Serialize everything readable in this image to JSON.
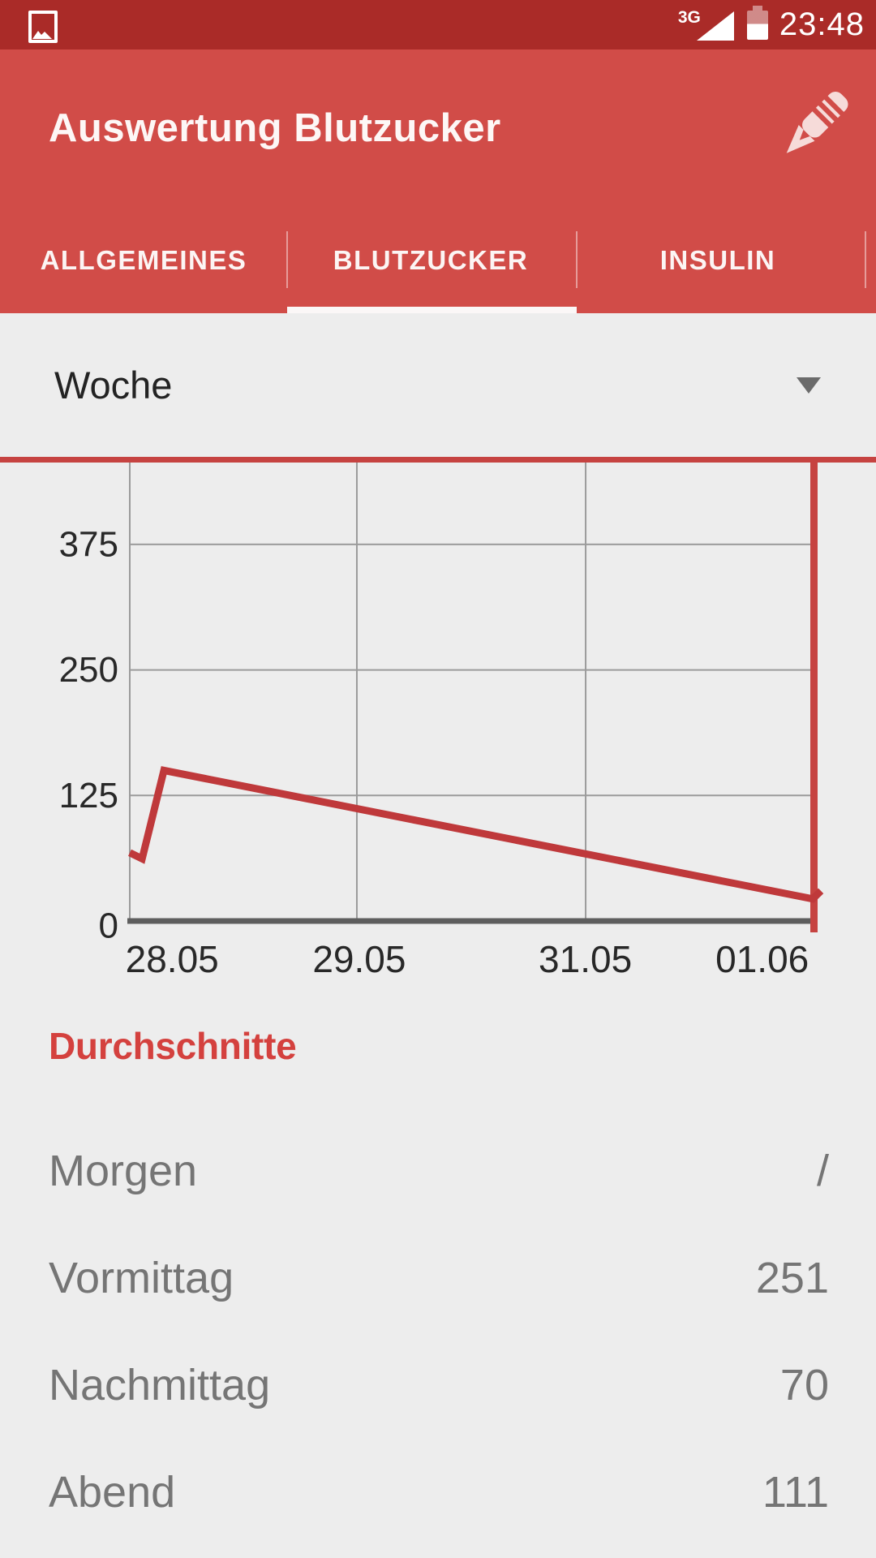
{
  "status_bar": {
    "network_label": "3G",
    "time": "23:48",
    "icons": [
      "gallery-icon",
      "signal-triangle-icon",
      "battery-icon"
    ]
  },
  "app_bar": {
    "title": "Auswertung Blutzucker",
    "edit_icon": "pencil-icon"
  },
  "tabs": {
    "items": [
      {
        "label": "ALLGEMEINES",
        "active": false
      },
      {
        "label": "BLUTZUCKER",
        "active": true
      },
      {
        "label": "INSULIN",
        "active": false
      }
    ]
  },
  "filter": {
    "selected": "Woche",
    "chevron_icon": "chevron-down-icon"
  },
  "chart_data": {
    "type": "line",
    "title": "",
    "xlabel": "",
    "ylabel": "",
    "x_ticks": [
      {
        "label": "28.05",
        "pos": 0.062
      },
      {
        "label": "29.05",
        "pos": 0.336
      },
      {
        "label": "31.05",
        "pos": 0.667
      },
      {
        "label": "01.06",
        "pos": 0.926
      }
    ],
    "y_ticks": [
      0,
      125,
      250,
      375
    ],
    "ylim": [
      0,
      457
    ],
    "grid": true,
    "legend": false,
    "v_gridlines": [
      0.0,
      0.3325,
      0.6675
    ],
    "frame_color": "#c64341",
    "series": [
      {
        "name": "Blutzucker",
        "color": "#bf393b",
        "points": [
          [
            0.0,
            68
          ],
          [
            0.018,
            62
          ],
          [
            0.05,
            150
          ],
          [
            1.0,
            22
          ],
          [
            1.012,
            30
          ]
        ]
      }
    ]
  },
  "averages": {
    "heading": "Durchschnitte",
    "rows": [
      {
        "label": "Morgen",
        "value": "/"
      },
      {
        "label": "Vormittag",
        "value": "251"
      },
      {
        "label": "Nachmittag",
        "value": "70"
      },
      {
        "label": "Abend",
        "value": "111"
      }
    ]
  },
  "colors": {
    "status_bar": "#aa2b28",
    "app_bar": "#d14c48",
    "chart_line": "#bf393b",
    "chart_frame": "#c64341",
    "heading_red": "#d4413e",
    "background": "#ededed",
    "row_text": "#757575"
  }
}
